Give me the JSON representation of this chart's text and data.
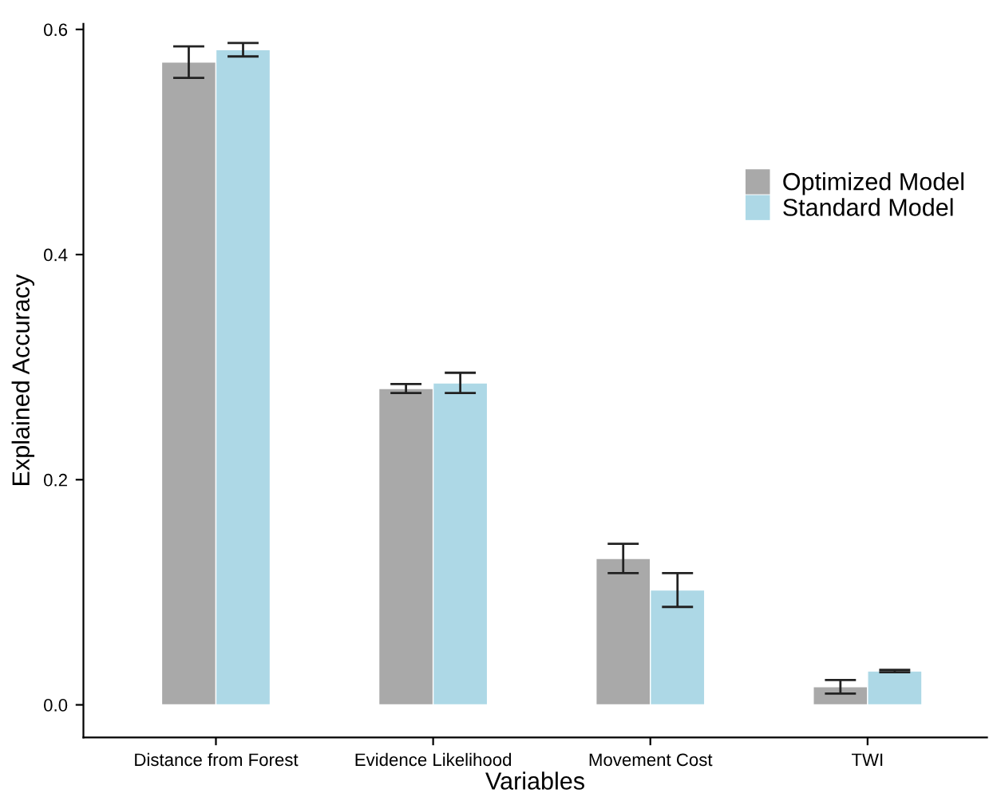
{
  "chart_data": {
    "type": "bar",
    "xlabel": "Variables",
    "ylabel": "Explained Accuracy",
    "categories": [
      "Distance from Forest",
      "Evidence Likelihood",
      "Movement Cost",
      "TWI"
    ],
    "series": [
      {
        "name": "Optimized Model",
        "color": "#a9a9a9",
        "values": [
          0.571,
          0.281,
          0.13,
          0.016
        ],
        "errors": [
          0.014,
          0.004,
          0.013,
          0.006
        ]
      },
      {
        "name": "Standard Model",
        "color": "#add8e6",
        "values": [
          0.582,
          0.286,
          0.102,
          0.03
        ],
        "errors": [
          0.006,
          0.009,
          0.015,
          0.001
        ]
      }
    ],
    "ylim": [
      -0.029,
      0.605
    ],
    "yticks": [
      {
        "value": 0,
        "label": "0.0"
      },
      {
        "value": 0.2,
        "label": "0.2"
      },
      {
        "value": 0.4,
        "label": "0.4"
      },
      {
        "value": 0.6,
        "label": "0.6"
      }
    ],
    "grid": false,
    "legend": "right"
  }
}
